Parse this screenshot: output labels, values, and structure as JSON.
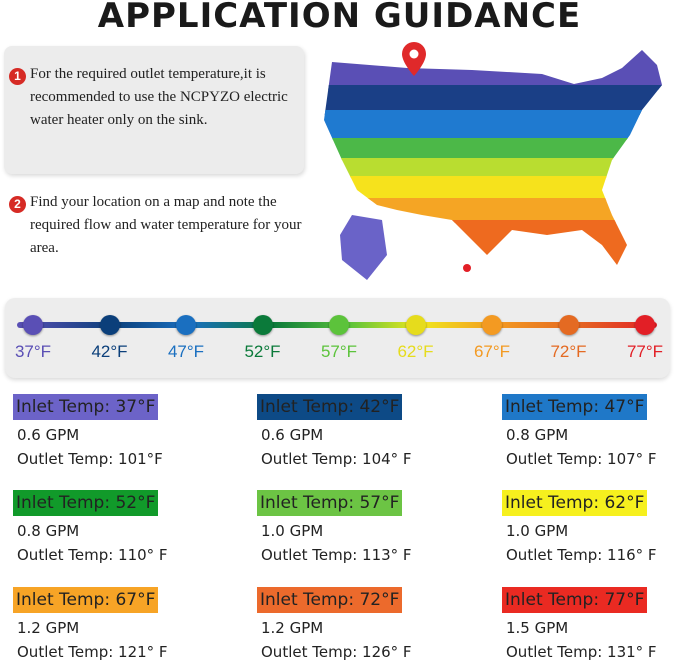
{
  "title": "APPLICATION GUIDANCE",
  "notes": [
    {
      "number": "1",
      "text": "For the required outlet temperature,it is recommended to use the NCPYZO electric water heater only on the sink."
    },
    {
      "number": "2",
      "text": "Find your location on a map and note the required flow and water temperature for your area."
    }
  ],
  "map_icon": "location-pin-icon",
  "scale": [
    {
      "label": "37°F",
      "color": "#5a4fb5"
    },
    {
      "label": "42°F",
      "color": "#0b3f7a"
    },
    {
      "label": "47°F",
      "color": "#1a6fc0"
    },
    {
      "label": "52°F",
      "color": "#0b7a3a"
    },
    {
      "label": "57°F",
      "color": "#5cc33b"
    },
    {
      "label": "62°F",
      "color": "#e6dc1c"
    },
    {
      "label": "67°F",
      "color": "#f39a22"
    },
    {
      "label": "72°F",
      "color": "#e46a22"
    },
    {
      "label": "77°F",
      "color": "#e21f26"
    }
  ],
  "cards": [
    {
      "inlet": "Inlet Temp: 37°F",
      "flow": "0.6 GPM",
      "outlet": "Outlet Temp: 101°F",
      "color": "#6c63c8"
    },
    {
      "inlet": "Inlet Temp: 42°F",
      "flow": "0.6 GPM",
      "outlet": "Outlet Temp: 104° F",
      "color": "#0d4a86"
    },
    {
      "inlet": "Inlet Temp: 47°F",
      "flow": "0.8 GPM",
      "outlet": "Outlet Temp: 107° F",
      "color": "#1f78c8"
    },
    {
      "inlet": "Inlet Temp: 52°F",
      "flow": "0.8 GPM",
      "outlet": "Outlet Temp: 110° F",
      "color": "#119a2a"
    },
    {
      "inlet": "Inlet Temp: 57°F",
      "flow": "1.0 GPM",
      "outlet": "Outlet Temp: 113° F",
      "color": "#6cc444"
    },
    {
      "inlet": "Inlet Temp: 62°F",
      "flow": "1.0 GPM",
      "outlet": "Outlet Temp: 116° F",
      "color": "#f6f01e"
    },
    {
      "inlet": "Inlet Temp: 67°F",
      "flow": "1.2 GPM",
      "outlet": "Outlet Temp: 121° F",
      "color": "#f7a426"
    },
    {
      "inlet": "Inlet Temp: 72°F",
      "flow": "1.2 GPM",
      "outlet": "Outlet Temp: 126° F",
      "color": "#ec6a2c"
    },
    {
      "inlet": "Inlet Temp: 77°F",
      "flow": "1.5 GPM",
      "outlet": "Outlet Temp: 131° F",
      "color": "#ea2a22"
    }
  ]
}
